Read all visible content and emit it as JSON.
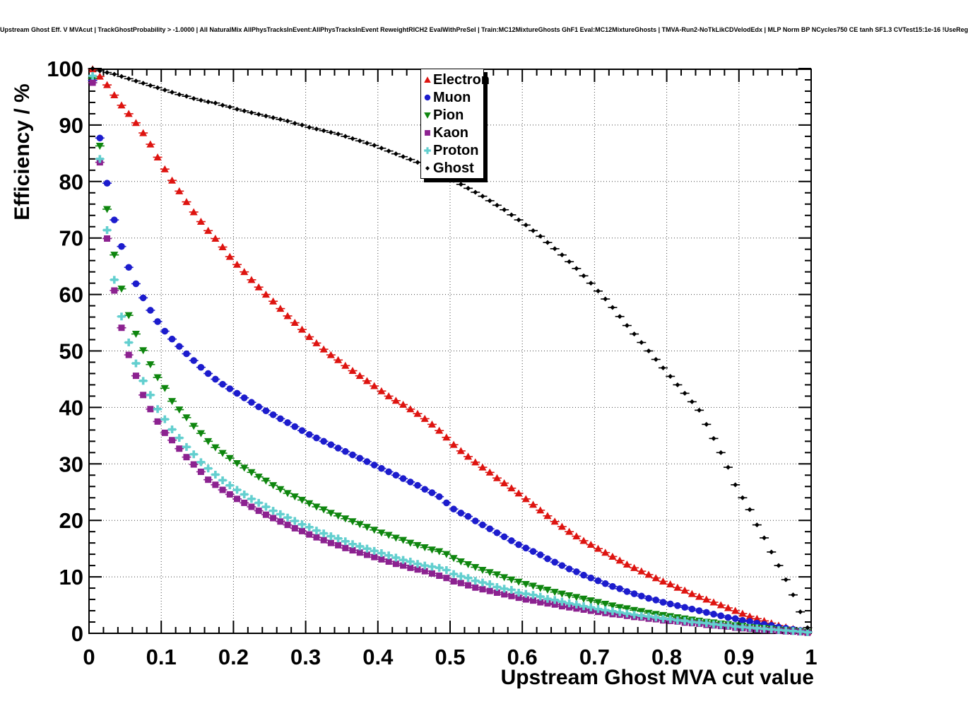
{
  "title": "Upstream Ghost Eff. V MVAcut | TrackGhostProbability > -1.0000 | All NaturalMix AllPhysTracksInEvent:AllPhysTracksInEvent ReweightRICH2 EvalWithPreSel | Train:MC12MixtureGhosts GhF1 Eval:MC12MixtureGhosts | TMVA-Run2-NoTkLikCDVelodEdx | MLP Norm BP NCycles750 CE tanh SF1.3 CVTest15:1e-16 !UseReg",
  "axes": {
    "x_title": "Upstream Ghost MVA cut value",
    "y_title": "Efficiency / %",
    "x_tick_labels": [
      "0",
      "0.1",
      "0.2",
      "0.3",
      "0.4",
      "0.5",
      "0.6",
      "0.7",
      "0.8",
      "0.9",
      "1"
    ],
    "y_tick_labels": [
      "0",
      "10",
      "20",
      "30",
      "40",
      "50",
      "60",
      "70",
      "80",
      "90",
      "100"
    ]
  },
  "chart_data": {
    "type": "scatter",
    "title": "Upstream Ghost Eff. V MVAcut",
    "xlabel": "Upstream Ghost MVA cut value",
    "ylabel": "Efficiency / %",
    "xlim": [
      0,
      1
    ],
    "ylim": [
      0,
      100
    ],
    "grid": "dotted, major divisions (x every 0.1, y every 10)",
    "legend_position": "upper middle",
    "x_major_step": 0.1,
    "x_minor_step": 0.02,
    "y_major_step": 10,
    "y_minor_step": 2,
    "x": [
      0.005,
      0.015,
      0.025,
      0.035,
      0.045,
      0.055,
      0.065,
      0.075,
      0.085,
      0.095,
      0.105,
      0.115,
      0.125,
      0.135,
      0.145,
      0.155,
      0.165,
      0.175,
      0.185,
      0.195,
      0.205,
      0.215,
      0.225,
      0.235,
      0.245,
      0.255,
      0.265,
      0.275,
      0.285,
      0.295,
      0.305,
      0.315,
      0.325,
      0.335,
      0.345,
      0.355,
      0.365,
      0.375,
      0.385,
      0.395,
      0.405,
      0.415,
      0.425,
      0.435,
      0.445,
      0.455,
      0.465,
      0.475,
      0.485,
      0.495,
      0.505,
      0.515,
      0.525,
      0.535,
      0.545,
      0.555,
      0.565,
      0.575,
      0.585,
      0.595,
      0.605,
      0.615,
      0.625,
      0.635,
      0.645,
      0.655,
      0.665,
      0.675,
      0.685,
      0.695,
      0.705,
      0.715,
      0.725,
      0.735,
      0.745,
      0.755,
      0.765,
      0.775,
      0.785,
      0.795,
      0.805,
      0.815,
      0.825,
      0.835,
      0.845,
      0.855,
      0.865,
      0.875,
      0.885,
      0.895,
      0.905,
      0.915,
      0.925,
      0.935,
      0.945,
      0.955,
      0.965,
      0.975,
      0.985,
      0.995
    ],
    "series": [
      {
        "name": "Electron",
        "marker": "triangle-up",
        "color": "#de1410",
        "values": [
          99.9,
          98.6,
          97.1,
          95.3,
          93.5,
          92.0,
          90.4,
          88.6,
          86.6,
          84.3,
          82.2,
          80.2,
          78.3,
          76.4,
          74.6,
          72.9,
          71.3,
          69.9,
          68.4,
          66.7,
          65.3,
          64.0,
          62.6,
          61.3,
          60.0,
          58.8,
          57.5,
          56.2,
          55.0,
          53.8,
          52.5,
          51.4,
          50.3,
          49.3,
          48.4,
          47.4,
          46.5,
          45.6,
          44.7,
          43.8,
          42.9,
          42.0,
          41.2,
          40.5,
          39.7,
          38.9,
          38.0,
          37.0,
          35.9,
          34.7,
          33.4,
          32.3,
          31.3,
          30.3,
          29.4,
          28.5,
          27.5,
          26.6,
          25.7,
          24.8,
          23.8,
          22.8,
          21.8,
          20.8,
          19.8,
          18.9,
          18.0,
          17.2,
          16.4,
          15.7,
          15.0,
          14.3,
          13.6,
          12.9,
          12.2,
          11.6,
          11.0,
          10.4,
          9.8,
          9.2,
          8.7,
          8.1,
          7.6,
          7.0,
          6.5,
          6.0,
          5.5,
          5.0,
          4.5,
          4.0,
          3.5,
          3.0,
          2.6,
          2.2,
          1.8,
          1.4,
          1.1,
          0.8,
          0.5,
          0.3
        ]
      },
      {
        "name": "Muon",
        "marker": "circle",
        "color": "#1c1ccd",
        "values": [
          97.9,
          87.7,
          79.7,
          73.2,
          68.5,
          64.8,
          61.9,
          59.4,
          57.2,
          55.2,
          53.5,
          52.1,
          50.8,
          49.5,
          48.3,
          47.1,
          46.0,
          45.0,
          44.1,
          43.3,
          42.5,
          41.7,
          40.9,
          40.1,
          39.4,
          38.7,
          38.0,
          37.3,
          36.6,
          35.9,
          35.2,
          34.6,
          34.0,
          33.4,
          32.8,
          32.2,
          31.6,
          31.0,
          30.4,
          29.8,
          29.2,
          28.6,
          28.0,
          27.4,
          26.8,
          26.2,
          25.5,
          24.9,
          24.2,
          23.1,
          22.0,
          21.3,
          20.7,
          19.9,
          19.2,
          18.5,
          17.8,
          17.1,
          16.4,
          15.7,
          15.1,
          14.5,
          13.9,
          13.2,
          12.6,
          12.0,
          11.4,
          10.9,
          10.3,
          9.8,
          9.3,
          8.8,
          8.3,
          7.9,
          7.4,
          7.0,
          6.6,
          6.2,
          5.9,
          5.5,
          5.2,
          4.9,
          4.6,
          4.3,
          4.0,
          3.7,
          3.4,
          3.1,
          2.8,
          2.6,
          2.3,
          2.1,
          1.8,
          1.6,
          1.4,
          1.1,
          0.9,
          0.7,
          0.5,
          0.3
        ]
      },
      {
        "name": "Pion",
        "marker": "triangle-down",
        "color": "#0e860e",
        "values": [
          98.3,
          86.3,
          75.1,
          67.0,
          61.0,
          56.3,
          53.0,
          50.1,
          47.6,
          45.3,
          43.4,
          41.1,
          39.6,
          38.2,
          36.7,
          35.4,
          34.0,
          32.9,
          31.9,
          31.0,
          30.1,
          29.3,
          28.5,
          27.7,
          27.0,
          26.2,
          25.5,
          24.8,
          24.2,
          23.6,
          23.0,
          22.4,
          21.9,
          21.3,
          20.8,
          20.3,
          19.8,
          19.3,
          18.8,
          18.3,
          17.8,
          17.4,
          16.9,
          16.5,
          16.0,
          15.6,
          15.2,
          14.8,
          14.5,
          14.0,
          13.3,
          12.7,
          12.2,
          11.7,
          11.2,
          10.8,
          10.4,
          9.9,
          9.5,
          9.1,
          8.7,
          8.4,
          8.0,
          7.7,
          7.3,
          7.0,
          6.7,
          6.4,
          6.1,
          5.8,
          5.5,
          5.2,
          4.9,
          4.6,
          4.4,
          4.1,
          3.9,
          3.6,
          3.4,
          3.2,
          3.0,
          2.8,
          2.6,
          2.4,
          2.2,
          2.0,
          1.9,
          1.7,
          1.6,
          1.4,
          1.3,
          1.1,
          1.0,
          0.9,
          0.8,
          0.6,
          0.5,
          0.4,
          0.3,
          0.2
        ]
      },
      {
        "name": "Kaon",
        "marker": "square",
        "color": "#8c2290",
        "values": [
          97.5,
          83.4,
          69.9,
          60.7,
          54.1,
          49.3,
          45.6,
          42.2,
          39.7,
          37.5,
          35.5,
          34.2,
          32.7,
          31.2,
          29.9,
          28.6,
          27.2,
          26.3,
          25.4,
          24.6,
          23.8,
          23.1,
          22.4,
          21.7,
          21.0,
          20.4,
          19.8,
          19.2,
          18.6,
          18.1,
          17.5,
          17.0,
          16.5,
          16.0,
          15.6,
          15.1,
          14.7,
          14.3,
          13.9,
          13.5,
          13.1,
          12.7,
          12.3,
          12.0,
          11.6,
          11.3,
          11.0,
          10.6,
          10.2,
          9.8,
          9.2,
          8.9,
          8.5,
          8.1,
          7.8,
          7.5,
          7.2,
          6.9,
          6.6,
          6.3,
          6.0,
          5.8,
          5.5,
          5.3,
          5.1,
          4.8,
          4.6,
          4.4,
          4.2,
          4.0,
          3.8,
          3.6,
          3.4,
          3.3,
          3.1,
          2.9,
          2.8,
          2.6,
          2.5,
          2.3,
          2.2,
          2.1,
          1.9,
          1.8,
          1.7,
          1.5,
          1.4,
          1.3,
          1.2,
          1.0,
          0.9,
          0.8,
          0.7,
          0.6,
          0.55,
          0.45,
          0.35,
          0.3,
          0.2,
          0.1
        ]
      },
      {
        "name": "Proton",
        "marker": "plus",
        "color": "#63cfcf",
        "values": [
          98.7,
          84.0,
          71.4,
          62.6,
          56.1,
          51.5,
          47.8,
          44.7,
          42.2,
          39.7,
          37.9,
          36.1,
          34.6,
          33.0,
          31.7,
          30.3,
          29.2,
          28.1,
          27.1,
          26.2,
          25.4,
          24.6,
          23.8,
          23.1,
          22.4,
          21.7,
          21.1,
          20.5,
          19.9,
          19.3,
          18.8,
          18.2,
          17.7,
          17.2,
          16.8,
          16.3,
          15.8,
          15.4,
          15.0,
          14.6,
          14.2,
          13.8,
          13.4,
          13.0,
          12.7,
          12.3,
          12.0,
          11.8,
          11.6,
          11.2,
          10.5,
          10.1,
          9.8,
          9.3,
          9.0,
          8.7,
          8.2,
          7.9,
          7.7,
          7.2,
          7.0,
          6.8,
          6.5,
          6.1,
          5.9,
          5.6,
          5.3,
          5.1,
          4.8,
          4.6,
          4.3,
          4.1,
          3.9,
          3.7,
          3.5,
          3.3,
          3.1,
          3.0,
          2.8,
          2.6,
          2.5,
          2.3,
          2.2,
          2.0,
          1.9,
          1.8,
          1.6,
          1.5,
          1.4,
          1.2,
          1.1,
          1.0,
          0.9,
          0.8,
          0.7,
          0.6,
          0.5,
          0.4,
          0.3,
          0.2
        ]
      },
      {
        "name": "Ghost",
        "marker": "diamond",
        "color": "#000000",
        "values": [
          100.0,
          99.6,
          99.3,
          99.0,
          98.6,
          98.2,
          97.8,
          97.4,
          97.0,
          96.6,
          96.2,
          95.8,
          95.4,
          95.1,
          94.7,
          94.4,
          94.1,
          93.9,
          93.5,
          93.2,
          92.8,
          92.5,
          92.2,
          91.9,
          91.6,
          91.3,
          91.0,
          90.7,
          90.3,
          90.0,
          89.6,
          89.3,
          89.0,
          88.7,
          88.4,
          88.0,
          87.6,
          87.2,
          86.8,
          86.4,
          85.9,
          85.4,
          84.9,
          84.4,
          83.9,
          83.4,
          82.8,
          82.2,
          81.6,
          80.9,
          80.2,
          79.5,
          78.8,
          78.1,
          77.4,
          76.6,
          75.8,
          75.0,
          74.1,
          73.2,
          72.3,
          71.3,
          70.3,
          69.2,
          68.1,
          67.0,
          65.8,
          64.6,
          63.3,
          62.0,
          60.6,
          59.2,
          57.7,
          56.1,
          54.5,
          53.0,
          51.5,
          50.0,
          48.5,
          47.0,
          45.5,
          44.0,
          42.5,
          41.0,
          39.5,
          37.0,
          34.5,
          32.0,
          29.4,
          26.3,
          24.0,
          21.9,
          19.2,
          16.9,
          14.4,
          12.0,
          9.5,
          6.8,
          3.8,
          1.0
        ]
      }
    ]
  },
  "legend": {
    "entries": [
      {
        "label": "Electron",
        "marker": "triangle-up",
        "color": "#de1410"
      },
      {
        "label": "Muon",
        "marker": "circle",
        "color": "#1c1ccd"
      },
      {
        "label": "Pion",
        "marker": "triangle-down",
        "color": "#0e860e"
      },
      {
        "label": "Kaon",
        "marker": "square",
        "color": "#8c2290"
      },
      {
        "label": "Proton",
        "marker": "plus",
        "color": "#63cfcf"
      },
      {
        "label": "Ghost",
        "marker": "diamond",
        "color": "#000000"
      }
    ]
  },
  "colors": {
    "frame": "#000000",
    "grid": "#444444",
    "background": "#ffffff"
  }
}
